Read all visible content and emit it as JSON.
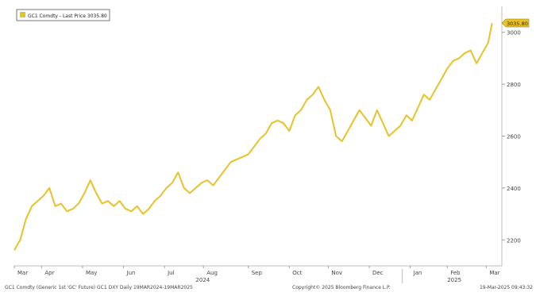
{
  "legend": {
    "label": "GC1 Comdty - Last Price 3035.80",
    "color": "#e8c22a"
  },
  "footer": {
    "left": "GC1 Comdty (Generic 1st 'GC' Future) GC1 DXY  Daily 19MAR2024-19MAR2025",
    "center": "Copyright© 2025 Bloomberg Finance L.P.",
    "right": "19-Mar-2025 09:43:32"
  },
  "chart_data": {
    "type": "line",
    "title": "",
    "xlabel": "",
    "ylabel": "",
    "ylim": [
      2100,
      3100
    ],
    "yticks": [
      2200,
      2400,
      2600,
      2800,
      3000
    ],
    "ytick_labels": [
      "2200",
      "2400",
      "2600",
      "2800",
      "3000"
    ],
    "xticks": [
      {
        "label": "Mar",
        "x": 0
      },
      {
        "label": "Apr",
        "x": 14
      },
      {
        "label": "May",
        "x": 35
      },
      {
        "label": "Jun",
        "x": 56
      },
      {
        "label": "Jul",
        "x": 77
      },
      {
        "label": "Aug",
        "x": 97
      },
      {
        "label": "Sep",
        "x": 120
      },
      {
        "label": "Oct",
        "x": 141
      },
      {
        "label": "Nov",
        "x": 161
      },
      {
        "label": "Dec",
        "x": 182
      },
      {
        "label": "Jan",
        "x": 203
      },
      {
        "label": "Feb",
        "x": 222
      },
      {
        "label": "Mar",
        "x": 242
      }
    ],
    "year_labels": [
      {
        "label": "2024",
        "x": 93
      },
      {
        "label": "2025",
        "x": 222
      }
    ],
    "last_price": {
      "value": 3035.8,
      "label": "3035.80"
    },
    "series": [
      {
        "name": "GC1 Comdty - Last Price",
        "color": "#e8c22a",
        "x": [
          0,
          3,
          6,
          9,
          12,
          15,
          18,
          21,
          24,
          27,
          30,
          33,
          36,
          39,
          42,
          45,
          48,
          51,
          54,
          57,
          60,
          63,
          66,
          69,
          72,
          75,
          78,
          81,
          84,
          87,
          90,
          93,
          96,
          99,
          102,
          105,
          108,
          111,
          114,
          117,
          120,
          123,
          126,
          129,
          132,
          135,
          138,
          141,
          144,
          147,
          150,
          153,
          156,
          159,
          162,
          165,
          168,
          171,
          174,
          177,
          180,
          183,
          186,
          189,
          192,
          195,
          198,
          201,
          204,
          207,
          210,
          213,
          216,
          219,
          222,
          225,
          228,
          231,
          234,
          237,
          240,
          243,
          245
        ],
        "values": [
          2160,
          2200,
          2280,
          2330,
          2350,
          2370,
          2400,
          2330,
          2340,
          2310,
          2320,
          2340,
          2380,
          2430,
          2380,
          2340,
          2350,
          2330,
          2350,
          2320,
          2310,
          2330,
          2300,
          2320,
          2350,
          2370,
          2400,
          2420,
          2460,
          2400,
          2380,
          2400,
          2420,
          2430,
          2410,
          2440,
          2470,
          2500,
          2510,
          2520,
          2530,
          2560,
          2590,
          2610,
          2650,
          2660,
          2650,
          2620,
          2680,
          2700,
          2740,
          2760,
          2790,
          2740,
          2700,
          2600,
          2580,
          2620,
          2660,
          2700,
          2670,
          2640,
          2700,
          2650,
          2600,
          2620,
          2640,
          2680,
          2660,
          2710,
          2760,
          2740,
          2780,
          2820,
          2860,
          2890,
          2900,
          2920,
          2930,
          2880,
          2920,
          2960,
          3035.8
        ]
      }
    ]
  }
}
